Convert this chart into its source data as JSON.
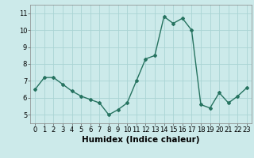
{
  "x": [
    0,
    1,
    2,
    3,
    4,
    5,
    6,
    7,
    8,
    9,
    10,
    11,
    12,
    13,
    14,
    15,
    16,
    17,
    18,
    19,
    20,
    21,
    22,
    23
  ],
  "y": [
    6.5,
    7.2,
    7.2,
    6.8,
    6.4,
    6.1,
    5.9,
    5.7,
    5.0,
    5.3,
    5.7,
    7.0,
    8.3,
    8.5,
    10.8,
    10.4,
    10.7,
    10.0,
    5.6,
    5.4,
    6.3,
    5.7,
    6.1,
    6.6
  ],
  "line_color": "#267360",
  "marker": "D",
  "marker_size": 2.0,
  "background_color": "#cceaea",
  "grid_color": "#aad4d4",
  "xlabel": "Humidex (Indice chaleur)",
  "ylim": [
    4.5,
    11.5
  ],
  "xlim": [
    -0.5,
    23.5
  ],
  "yticks": [
    5,
    6,
    7,
    8,
    9,
    10,
    11
  ],
  "xticks": [
    0,
    1,
    2,
    3,
    4,
    5,
    6,
    7,
    8,
    9,
    10,
    11,
    12,
    13,
    14,
    15,
    16,
    17,
    18,
    19,
    20,
    21,
    22,
    23
  ],
  "tick_fontsize": 6.0,
  "xlabel_fontsize": 7.5,
  "line_width": 1.0
}
